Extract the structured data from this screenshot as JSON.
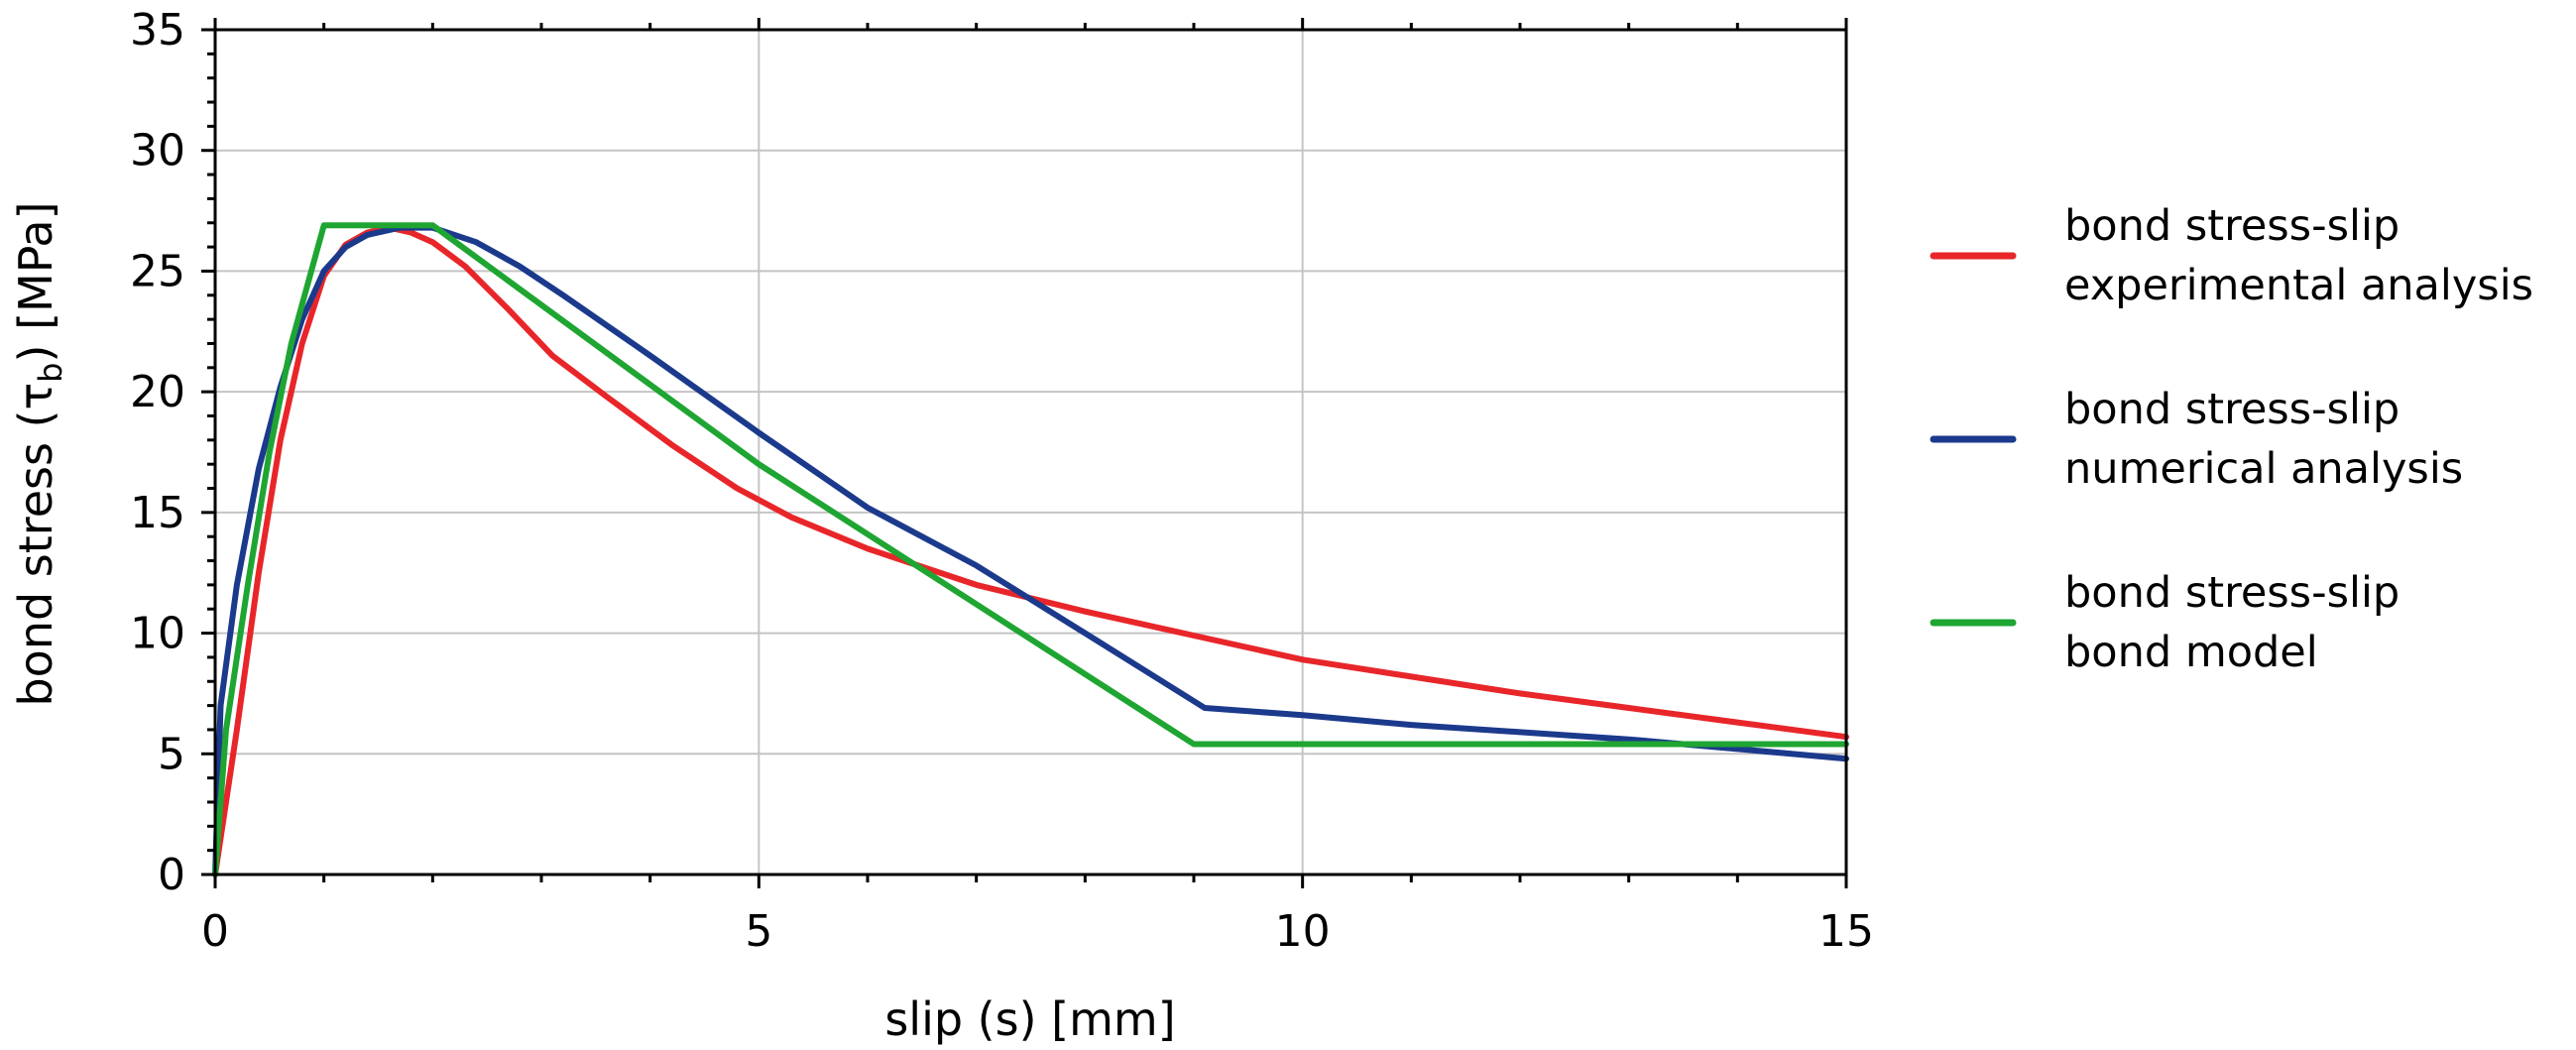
{
  "chart_data": {
    "type": "line",
    "xlabel": "slip (s) [mm]",
    "ylabel": {
      "before": "bond stress (τ",
      "subscript": "b",
      "after": ") [MPa]"
    },
    "xlim": [
      0,
      15
    ],
    "ylim": [
      0,
      35
    ],
    "x_ticks": [
      0,
      5,
      10,
      15
    ],
    "y_ticks": [
      0,
      5,
      10,
      15,
      20,
      25,
      30,
      35
    ],
    "x_tick_labels": [
      "0",
      "5",
      "10",
      "15"
    ],
    "y_tick_labels": [
      "0",
      "5",
      "10",
      "15",
      "20",
      "25",
      "30",
      "35"
    ],
    "grid": true,
    "legend_position": "right",
    "series": [
      {
        "name_lines": [
          "bond stress-slip",
          "experimental analysis"
        ],
        "color": "#e8262a",
        "points": [
          [
            0,
            0
          ],
          [
            0.2,
            6
          ],
          [
            0.4,
            12.5
          ],
          [
            0.6,
            18
          ],
          [
            0.8,
            22
          ],
          [
            1.0,
            24.8
          ],
          [
            1.2,
            26.1
          ],
          [
            1.4,
            26.6
          ],
          [
            1.6,
            26.8
          ],
          [
            1.8,
            26.6
          ],
          [
            2.0,
            26.2
          ],
          [
            2.3,
            25.2
          ],
          [
            2.7,
            23.4
          ],
          [
            3.1,
            21.5
          ],
          [
            3.6,
            19.8
          ],
          [
            4.2,
            17.8
          ],
          [
            4.8,
            16.0
          ],
          [
            5.3,
            14.8
          ],
          [
            6.0,
            13.5
          ],
          [
            7.0,
            12.0
          ],
          [
            8.0,
            10.9
          ],
          [
            9.0,
            9.9
          ],
          [
            10.0,
            8.9
          ],
          [
            11.0,
            8.2
          ],
          [
            12.0,
            7.5
          ],
          [
            13.0,
            6.9
          ],
          [
            14.0,
            6.3
          ],
          [
            15.0,
            5.7
          ]
        ]
      },
      {
        "name_lines": [
          "bond stress-slip",
          "numerical analysis"
        ],
        "color": "#1b3a8c",
        "points": [
          [
            0,
            0
          ],
          [
            0.05,
            7
          ],
          [
            0.2,
            12
          ],
          [
            0.4,
            16.8
          ],
          [
            0.6,
            20.2
          ],
          [
            0.8,
            23.0
          ],
          [
            1.0,
            25.0
          ],
          [
            1.2,
            26.0
          ],
          [
            1.4,
            26.5
          ],
          [
            1.7,
            26.8
          ],
          [
            2.0,
            26.8
          ],
          [
            2.4,
            26.2
          ],
          [
            2.8,
            25.2
          ],
          [
            3.2,
            24.0
          ],
          [
            4.0,
            21.5
          ],
          [
            5.0,
            18.3
          ],
          [
            6.0,
            15.2
          ],
          [
            7.0,
            12.8
          ],
          [
            8.0,
            10.0
          ],
          [
            9.1,
            6.9
          ],
          [
            10.0,
            6.6
          ],
          [
            11.0,
            6.2
          ],
          [
            12.0,
            5.9
          ],
          [
            13.0,
            5.6
          ],
          [
            14.0,
            5.2
          ],
          [
            15.0,
            4.8
          ]
        ]
      },
      {
        "name_lines": [
          "bond stress-slip",
          "bond model"
        ],
        "color": "#1fa532",
        "points": [
          [
            0,
            0
          ],
          [
            0.1,
            6
          ],
          [
            0.3,
            12
          ],
          [
            0.5,
            17.5
          ],
          [
            0.7,
            22
          ],
          [
            1.0,
            26.9
          ],
          [
            2.0,
            26.9
          ],
          [
            5.0,
            17.0
          ],
          [
            9.0,
            5.4
          ],
          [
            15.0,
            5.4
          ]
        ]
      }
    ]
  }
}
